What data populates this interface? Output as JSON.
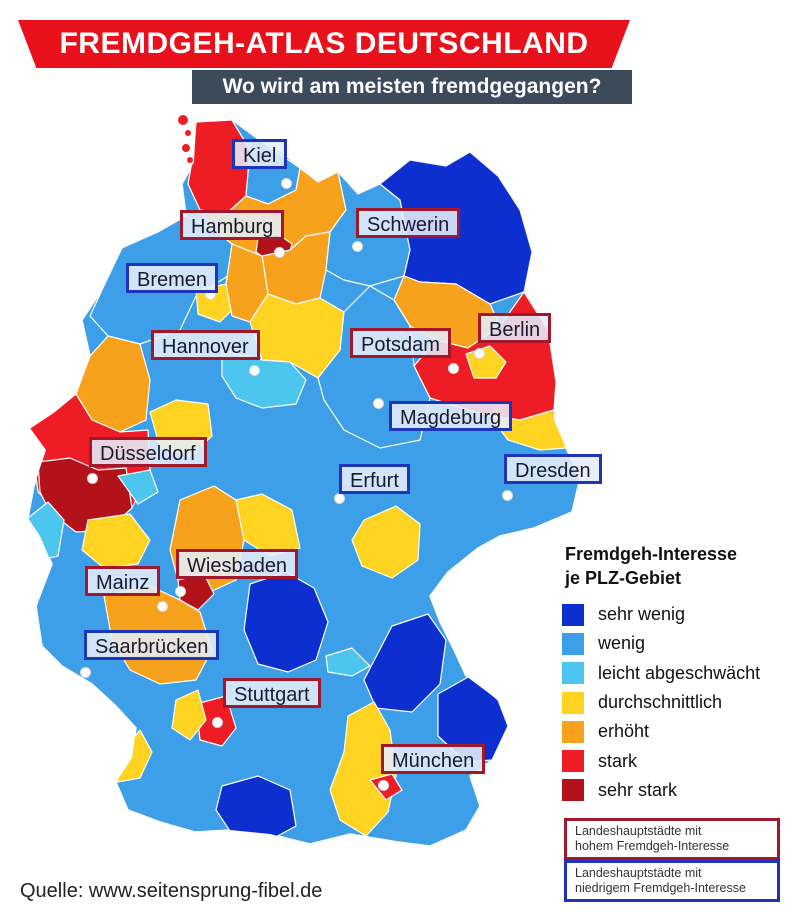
{
  "title": "FREMDGEH-ATLAS DEUTSCHLAND",
  "subtitle": "Wo wird am meisten fremdgegangen?",
  "colors": {
    "sehr_wenig": "#0d2fd0",
    "wenig": "#3d9fe8",
    "leicht": "#4cc6ee",
    "durchschnittlich": "#ffd321",
    "erhoeht": "#f7a21c",
    "stark": "#ee1c25",
    "sehr_stark": "#b3121a",
    "high_border": "#a0182a",
    "low_border": "#1e35b8",
    "banner": "#e8101b",
    "subtitle_bg": "#3c4a5c"
  },
  "cities": [
    {
      "name": "Kiel",
      "interest": "low"
    },
    {
      "name": "Hamburg",
      "interest": "high"
    },
    {
      "name": "Schwerin",
      "interest": "high"
    },
    {
      "name": "Bremen",
      "interest": "low"
    },
    {
      "name": "Hannover",
      "interest": "high"
    },
    {
      "name": "Potsdam",
      "interest": "high"
    },
    {
      "name": "Berlin",
      "interest": "high"
    },
    {
      "name": "Magdeburg",
      "interest": "low"
    },
    {
      "name": "Düsseldorf",
      "interest": "high"
    },
    {
      "name": "Erfurt",
      "interest": "low"
    },
    {
      "name": "Dresden",
      "interest": "low"
    },
    {
      "name": "Wiesbaden",
      "interest": "high"
    },
    {
      "name": "Mainz",
      "interest": "high"
    },
    {
      "name": "Saarbrücken",
      "interest": "low"
    },
    {
      "name": "Stuttgart",
      "interest": "high"
    },
    {
      "name": "München",
      "interest": "high"
    }
  ],
  "legend": {
    "title_line1": "Fremdgeh-Interesse",
    "title_line2": "je PLZ-Gebiet",
    "items": [
      {
        "label": "sehr wenig",
        "color": "#0d2fd0"
      },
      {
        "label": "wenig",
        "color": "#3d9fe8"
      },
      {
        "label": "leicht abgeschwächt",
        "color": "#4cc6ee"
      },
      {
        "label": "durchschnittlich",
        "color": "#ffd321"
      },
      {
        "label": "erhöht",
        "color": "#f7a21c"
      },
      {
        "label": "stark",
        "color": "#ee1c25"
      },
      {
        "label": "sehr stark",
        "color": "#b3121a"
      }
    ]
  },
  "notes": {
    "high_line1": "Landeshauptstädte mit",
    "high_line2": "hohem Fremdgeh-Interesse",
    "low_line1": "Landeshauptstädte mit",
    "low_line2": "niedrigem Fremdgeh-Interesse"
  },
  "source": "Quelle: www.seitensprung-fibel.de"
}
